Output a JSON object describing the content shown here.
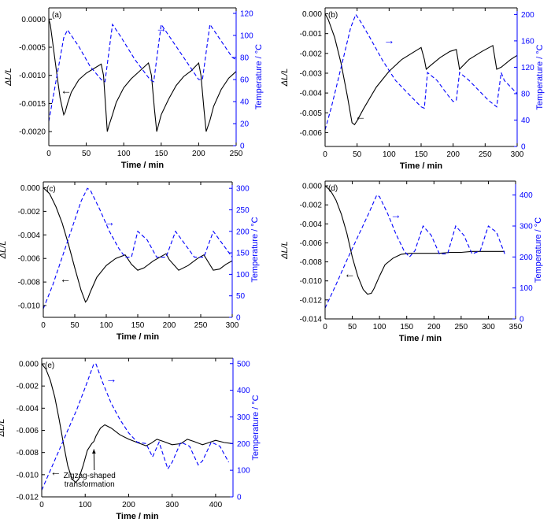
{
  "chart_data": [
    {
      "type": "line",
      "panel_label": "(a)",
      "xlabel": "Time / min",
      "ylabel": "ΔL/L",
      "y2label": "Temperature / °C",
      "xlim": [
        0,
        250
      ],
      "ylim": [
        -0.00225,
        0.0002
      ],
      "y2lim": [
        0,
        125
      ],
      "xticks": [
        0,
        50,
        100,
        150,
        200,
        250
      ],
      "yticks": [
        -0.002,
        -0.0015,
        -0.001,
        -0.0005,
        0
      ],
      "ytick_labels": [
        "-0.0020",
        "-0.0015",
        "-0.0010",
        "-0.0005",
        "0.0000"
      ],
      "y2ticks": [
        0,
        20,
        40,
        60,
        80,
        100,
        120
      ],
      "series": [
        {
          "axis": "left",
          "style": "solid",
          "color": "#000000",
          "x": [
            0,
            2,
            5,
            10,
            15,
            20,
            22,
            25,
            30,
            40,
            50,
            60,
            70,
            73,
            76,
            78,
            80,
            85,
            90,
            100,
            110,
            120,
            133,
            137,
            141,
            144,
            146,
            150,
            160,
            170,
            180,
            190,
            200,
            203,
            207,
            210,
            215,
            220,
            230,
            240,
            250
          ],
          "y": [
            0,
            -0.0001,
            -0.0004,
            -0.0009,
            -0.0014,
            -0.0017,
            -0.00165,
            -0.0015,
            -0.0013,
            -0.00108,
            -0.00096,
            -0.00088,
            -0.0008,
            -0.001,
            -0.0016,
            -0.002,
            -0.0019,
            -0.0017,
            -0.00148,
            -0.00122,
            -0.00106,
            -0.00094,
            -0.00078,
            -0.001,
            -0.0016,
            -0.002,
            -0.0019,
            -0.0017,
            -0.00142,
            -0.00118,
            -0.00102,
            -0.00092,
            -0.00078,
            -0.001,
            -0.0016,
            -0.002,
            -0.0018,
            -0.00155,
            -0.00125,
            -0.00105,
            -0.00093
          ]
        },
        {
          "axis": "right",
          "style": "dashed",
          "color": "#0000ff",
          "x": [
            0,
            10,
            20,
            25,
            40,
            55,
            70,
            75,
            85,
            95,
            115,
            135,
            140,
            150,
            160,
            180,
            200,
            205,
            215,
            225,
            245,
            250
          ],
          "y": [
            22,
            60,
            98,
            105,
            90,
            72,
            60,
            58,
            110,
            100,
            78,
            60,
            58,
            110,
            100,
            80,
            60,
            60,
            110,
            100,
            80,
            78
          ]
        }
      ],
      "annotations": [
        {
          "text": "←",
          "series": "ΔL/L",
          "at": [
            23,
            -0.00128
          ]
        },
        {
          "text": "→",
          "series": "Temperature",
          "at": [
            150,
            106
          ]
        }
      ]
    },
    {
      "type": "line",
      "panel_label": "(b)",
      "xlabel": "Time / min",
      "ylabel": "ΔL/L",
      "y2label": "Temperature / °C",
      "xlim": [
        0,
        300
      ],
      "ylim": [
        -0.0067,
        0.0003
      ],
      "y2lim": [
        0,
        210
      ],
      "xticks": [
        0,
        50,
        100,
        150,
        200,
        250,
        300
      ],
      "yticks": [
        -0.006,
        -0.005,
        -0.004,
        -0.003,
        -0.002,
        -0.001,
        0
      ],
      "ytick_labels": [
        "-0.006",
        "-0.005",
        "-0.004",
        "-0.003",
        "-0.002",
        "-0.001",
        "0.000"
      ],
      "y2ticks": [
        0,
        40,
        80,
        120,
        160,
        200
      ],
      "series": [
        {
          "axis": "left",
          "style": "solid",
          "color": "#000000",
          "x": [
            0,
            5,
            15,
            25,
            35,
            42,
            46,
            50,
            60,
            80,
            100,
            120,
            140,
            150,
            155,
            158,
            165,
            180,
            195,
            205,
            210,
            225,
            245,
            262,
            268,
            275,
            290,
            300
          ],
          "y": [
            0,
            -0.0003,
            -0.0012,
            -0.0025,
            -0.0042,
            -0.0055,
            -0.0056,
            -0.0054,
            -0.0048,
            -0.0037,
            -0.0029,
            -0.0023,
            -0.0019,
            -0.0017,
            -0.0023,
            -0.0028,
            -0.0026,
            -0.0022,
            -0.0019,
            -0.0018,
            -0.0028,
            -0.0023,
            -0.0019,
            -0.0016,
            -0.0028,
            -0.0027,
            -0.0023,
            -0.0021
          ]
        },
        {
          "axis": "right",
          "style": "dashed",
          "color": "#0000ff",
          "x": [
            0,
            10,
            20,
            30,
            40,
            48,
            55,
            70,
            90,
            110,
            130,
            150,
            155,
            160,
            175,
            190,
            200,
            205,
            210,
            225,
            240,
            255,
            268,
            275,
            280,
            290,
            300
          ],
          "y": [
            25,
            60,
            100,
            140,
            180,
            200,
            190,
            165,
            130,
            100,
            80,
            60,
            58,
            112,
            100,
            80,
            68,
            70,
            112,
            100,
            85,
            70,
            60,
            112,
            100,
            90,
            80
          ]
        }
      ],
      "annotations": [
        {
          "text": "←",
          "series": "ΔL/L",
          "at": [
            55,
            -0.0052
          ]
        },
        {
          "text": "→",
          "series": "Temperature",
          "at": [
            100,
            160
          ]
        }
      ]
    },
    {
      "type": "line",
      "panel_label": "(c)",
      "xlabel": "Time / min",
      "ylabel": "ΔL/L",
      "y2label": "Temperature / °C",
      "xlim": [
        0,
        300
      ],
      "ylim": [
        -0.011,
        0.0005
      ],
      "y2lim": [
        0,
        315
      ],
      "xticks": [
        0,
        50,
        100,
        150,
        200,
        250,
        300
      ],
      "yticks": [
        -0.01,
        -0.008,
        -0.006,
        -0.004,
        -0.002,
        0
      ],
      "ytick_labels": [
        "-0.010",
        "-0.008",
        "-0.006",
        "-0.004",
        "-0.002",
        "0.000"
      ],
      "y2ticks": [
        0,
        50,
        100,
        150,
        200,
        250,
        300
      ],
      "series": [
        {
          "axis": "left",
          "style": "solid",
          "color": "#000000",
          "x": [
            0,
            10,
            20,
            30,
            40,
            50,
            60,
            67,
            70,
            75,
            85,
            100,
            115,
            130,
            140,
            150,
            160,
            175,
            195,
            200,
            215,
            230,
            245,
            255,
            270,
            280,
            290,
            300
          ],
          "y": [
            0,
            -0.0005,
            -0.0016,
            -0.003,
            -0.0048,
            -0.0068,
            -0.0087,
            -0.0097,
            -0.0095,
            -0.0088,
            -0.0076,
            -0.0066,
            -0.006,
            -0.0057,
            -0.0065,
            -0.007,
            -0.0068,
            -0.0062,
            -0.0056,
            -0.0061,
            -0.007,
            -0.0066,
            -0.006,
            -0.0057,
            -0.007,
            -0.0069,
            -0.0065,
            -0.0062
          ]
        },
        {
          "axis": "right",
          "style": "dashed",
          "color": "#0000ff",
          "x": [
            0,
            15,
            30,
            45,
            60,
            70,
            75,
            90,
            105,
            120,
            130,
            140,
            150,
            165,
            180,
            195,
            210,
            220,
            240,
            255,
            270,
            280,
            300
          ],
          "y": [
            20,
            75,
            140,
            205,
            270,
            300,
            295,
            250,
            200,
            160,
            140,
            140,
            200,
            180,
            140,
            140,
            200,
            180,
            140,
            140,
            200,
            180,
            140
          ]
        }
      ],
      "annotations": [
        {
          "text": "←",
          "series": "ΔL/L",
          "at": [
            35,
            -0.0078
          ]
        },
        {
          "text": "→",
          "series": "Temperature",
          "at": [
            105,
            220
          ]
        }
      ]
    },
    {
      "type": "line",
      "panel_label": "(d)",
      "xlabel": "Time / min",
      "ylabel": "ΔL/L",
      "y2label": "Temperature / °C",
      "xlim": [
        0,
        350
      ],
      "ylim": [
        -0.014,
        0.0005
      ],
      "y2lim": [
        0,
        445
      ],
      "xticks": [
        0,
        50,
        100,
        150,
        200,
        250,
        300,
        350
      ],
      "yticks": [
        -0.014,
        -0.012,
        -0.01,
        -0.008,
        -0.006,
        -0.004,
        -0.002,
        0
      ],
      "ytick_labels": [
        "-0.014",
        "-0.012",
        "-0.010",
        "-0.008",
        "-0.006",
        "-0.004",
        "-0.002",
        "0.000"
      ],
      "y2ticks": [
        0,
        100,
        200,
        300,
        400
      ],
      "series": [
        {
          "axis": "left",
          "style": "solid",
          "color": "#000000",
          "x": [
            0,
            10,
            20,
            30,
            40,
            50,
            60,
            70,
            78,
            85,
            90,
            100,
            110,
            125,
            140,
            155,
            170,
            190,
            210,
            230,
            250,
            270,
            290,
            310,
            330
          ],
          "y": [
            0,
            -0.0005,
            -0.0015,
            -0.003,
            -0.005,
            -0.0075,
            -0.0095,
            -0.0109,
            -0.0114,
            -0.0113,
            -0.0108,
            -0.0095,
            -0.0083,
            -0.0076,
            -0.0072,
            -0.0071,
            -0.0071,
            -0.0071,
            -0.0071,
            -0.007,
            -0.007,
            -0.0069,
            -0.0069,
            -0.0069,
            -0.0069
          ]
        },
        {
          "axis": "right",
          "style": "dashed",
          "color": "#0000ff",
          "x": [
            0,
            20,
            40,
            60,
            80,
            95,
            100,
            115,
            130,
            145,
            155,
            165,
            180,
            195,
            210,
            225,
            240,
            255,
            270,
            285,
            300,
            315,
            330
          ],
          "y": [
            35,
            110,
            190,
            265,
            340,
            400,
            395,
            340,
            275,
            220,
            200,
            220,
            300,
            270,
            210,
            210,
            300,
            270,
            210,
            220,
            300,
            280,
            210
          ]
        }
      ],
      "annotations": [
        {
          "text": "←",
          "series": "ΔL/L",
          "at": [
            45,
            -0.0093
          ]
        },
        {
          "text": "→",
          "series": "Temperature",
          "at": [
            130,
            335
          ]
        }
      ]
    },
    {
      "type": "line",
      "panel_label": "(e)",
      "xlabel": "Time / min",
      "ylabel": "ΔL/L",
      "y2label": "Temperature / °C",
      "xlim": [
        0,
        440
      ],
      "ylim": [
        -0.012,
        0.0005
      ],
      "y2lim": [
        0,
        520
      ],
      "xticks": [
        0,
        100,
        200,
        300,
        400
      ],
      "yticks": [
        -0.012,
        -0.01,
        -0.008,
        -0.006,
        -0.004,
        -0.002,
        0
      ],
      "ytick_labels": [
        "-0.012",
        "-0.010",
        "-0.008",
        "-0.006",
        "-0.004",
        "-0.002",
        "0.000"
      ],
      "y2ticks": [
        0,
        100,
        200,
        300,
        400,
        500
      ],
      "series": [
        {
          "axis": "left",
          "style": "solid",
          "color": "#000000",
          "x": [
            0,
            10,
            20,
            30,
            40,
            50,
            60,
            70,
            78,
            85,
            95,
            105,
            110,
            115,
            120,
            125,
            135,
            145,
            160,
            180,
            200,
            220,
            240,
            250,
            265,
            280,
            300,
            320,
            335,
            350,
            370,
            385,
            400,
            420,
            440
          ],
          "y": [
            0,
            -0.0005,
            -0.0015,
            -0.003,
            -0.005,
            -0.0072,
            -0.0092,
            -0.0104,
            -0.0107,
            -0.0104,
            -0.0092,
            -0.0078,
            -0.0075,
            -0.0072,
            -0.007,
            -0.0065,
            -0.0058,
            -0.0055,
            -0.0058,
            -0.0064,
            -0.0068,
            -0.0071,
            -0.0074,
            -0.0072,
            -0.0068,
            -0.007,
            -0.0073,
            -0.0072,
            -0.0068,
            -0.007,
            -0.0073,
            -0.0071,
            -0.0069,
            -0.0071,
            -0.0072
          ]
        },
        {
          "axis": "right",
          "style": "dashed",
          "color": "#0000ff",
          "x": [
            0,
            20,
            40,
            60,
            80,
            100,
            120,
            125,
            140,
            160,
            180,
            200,
            220,
            240,
            255,
            270,
            290,
            300,
            320,
            340,
            360,
            370,
            390,
            410,
            430
          ],
          "y": [
            25,
            100,
            175,
            250,
            325,
            410,
            500,
            498,
            430,
            350,
            290,
            240,
            205,
            200,
            150,
            205,
            105,
            130,
            205,
            190,
            120,
            135,
            205,
            190,
            130
          ]
        }
      ],
      "annotations": [
        {
          "text": "←",
          "series": "ΔL/L",
          "at": [
            32,
            -0.0098
          ]
        },
        {
          "text": "→",
          "series": "Temperature",
          "at": [
            160,
            440
          ]
        },
        {
          "text_lines": [
            "Zigzag-shaped",
            "transformation"
          ],
          "at": [
            110,
            -0.0103
          ],
          "arrow_to": [
            120,
            -0.0077
          ]
        }
      ]
    }
  ]
}
